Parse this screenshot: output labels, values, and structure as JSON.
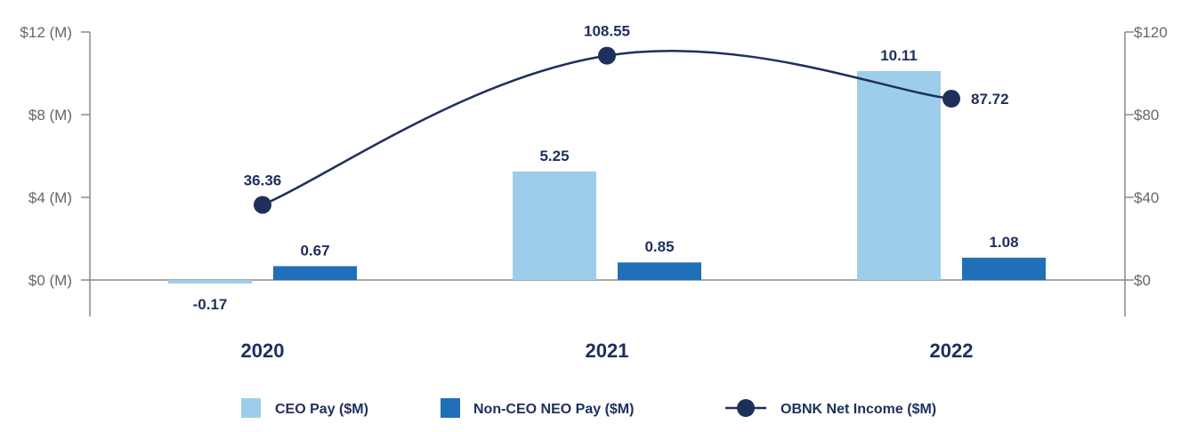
{
  "chart_data": {
    "type": "bar",
    "categories": [
      "2020",
      "2021",
      "2022"
    ],
    "series": [
      {
        "name": "CEO Pay ($M)",
        "kind": "bar",
        "axis": "left",
        "color": "#9dcdeb",
        "values": [
          -0.17,
          5.25,
          10.11
        ]
      },
      {
        "name": "Non-CEO NEO Pay ($M)",
        "kind": "bar",
        "axis": "left",
        "color": "#1f6fb9",
        "values": [
          0.67,
          0.85,
          1.08
        ]
      },
      {
        "name": "OBNK Net Income ($M)",
        "kind": "line",
        "axis": "right",
        "color": "#1f2f5c",
        "values": [
          36.36,
          108.55,
          87.72
        ]
      }
    ],
    "data_labels": {
      "ceo": [
        "-0.17",
        "5.25",
        "10.11"
      ],
      "non_ceo": [
        "0.67",
        "0.85",
        "1.08"
      ],
      "net_income": [
        "36.36",
        "108.55",
        "87.72"
      ]
    },
    "left_axis": {
      "ylim": [
        -1.8,
        12
      ],
      "ticks": [
        0,
        4,
        8,
        12
      ],
      "tick_labels": [
        "$0 (M)",
        "$4 (M)",
        "$8 (M)",
        "$12 (M)"
      ]
    },
    "right_axis": {
      "ylim": [
        -18,
        120
      ],
      "ticks": [
        0,
        40,
        80,
        120
      ],
      "tick_labels": [
        "$0",
        "$40",
        "$80",
        "$120"
      ]
    },
    "legend": {
      "placement": "bottom-center",
      "items": [
        "CEO Pay ($M)",
        "Non-CEO NEO Pay ($M)",
        "OBNK Net Income ($M)"
      ]
    },
    "grid": false
  }
}
